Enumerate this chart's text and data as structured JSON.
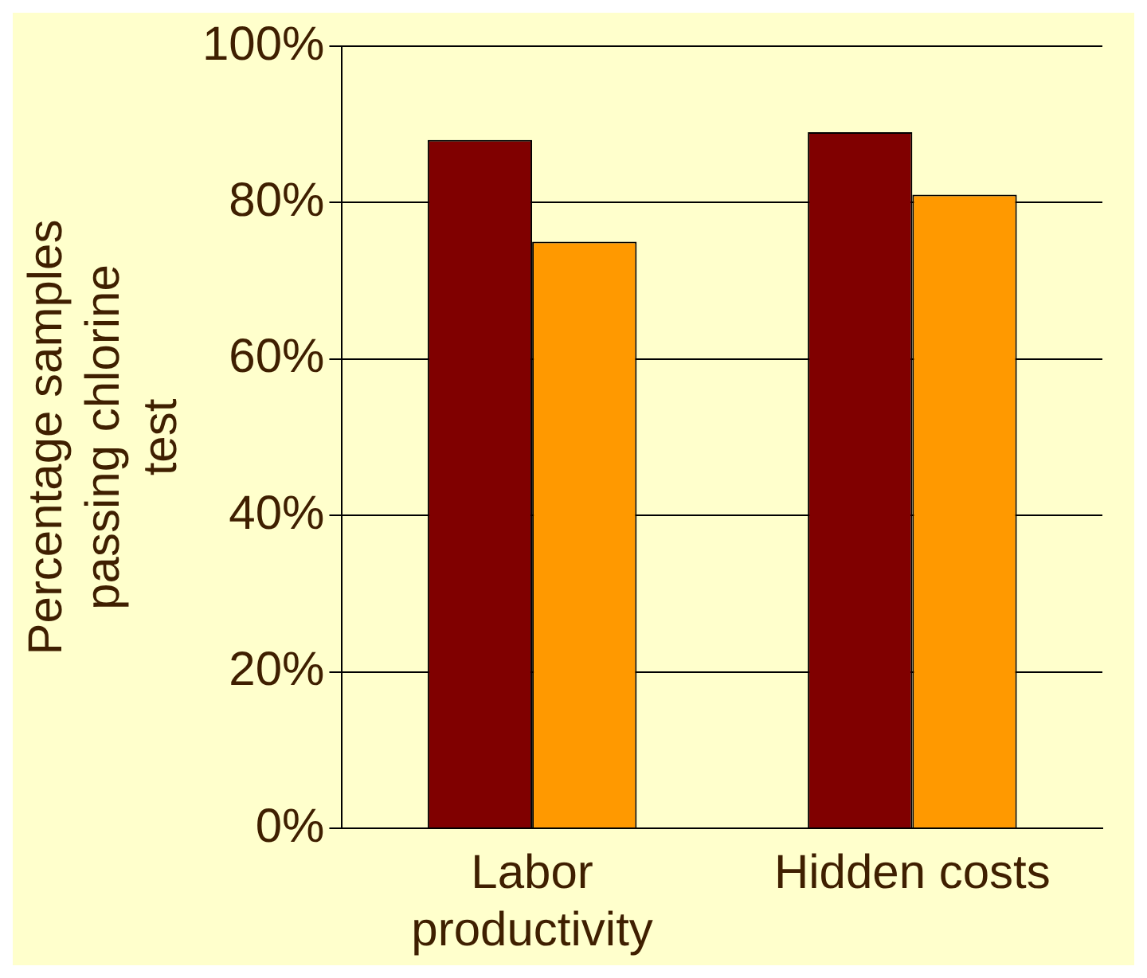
{
  "chart_data": {
    "type": "bar",
    "ylabel": "Percentage samples passing chlorine test",
    "categories": [
      "Labor productivity",
      "Hidden costs"
    ],
    "series": [
      {
        "color": "#800000",
        "values": [
          88,
          89
        ]
      },
      {
        "color": "#ff9900",
        "values": [
          75,
          81
        ]
      }
    ],
    "ylim": [
      0,
      100
    ],
    "yticks": [
      {
        "value": 0,
        "label": "0%"
      },
      {
        "value": 20,
        "label": "20%"
      },
      {
        "value": 40,
        "label": "40%"
      },
      {
        "value": 60,
        "label": "60%"
      },
      {
        "value": 80,
        "label": "80%"
      },
      {
        "value": 100,
        "label": "100%"
      }
    ],
    "grid": "y",
    "legend": false
  }
}
